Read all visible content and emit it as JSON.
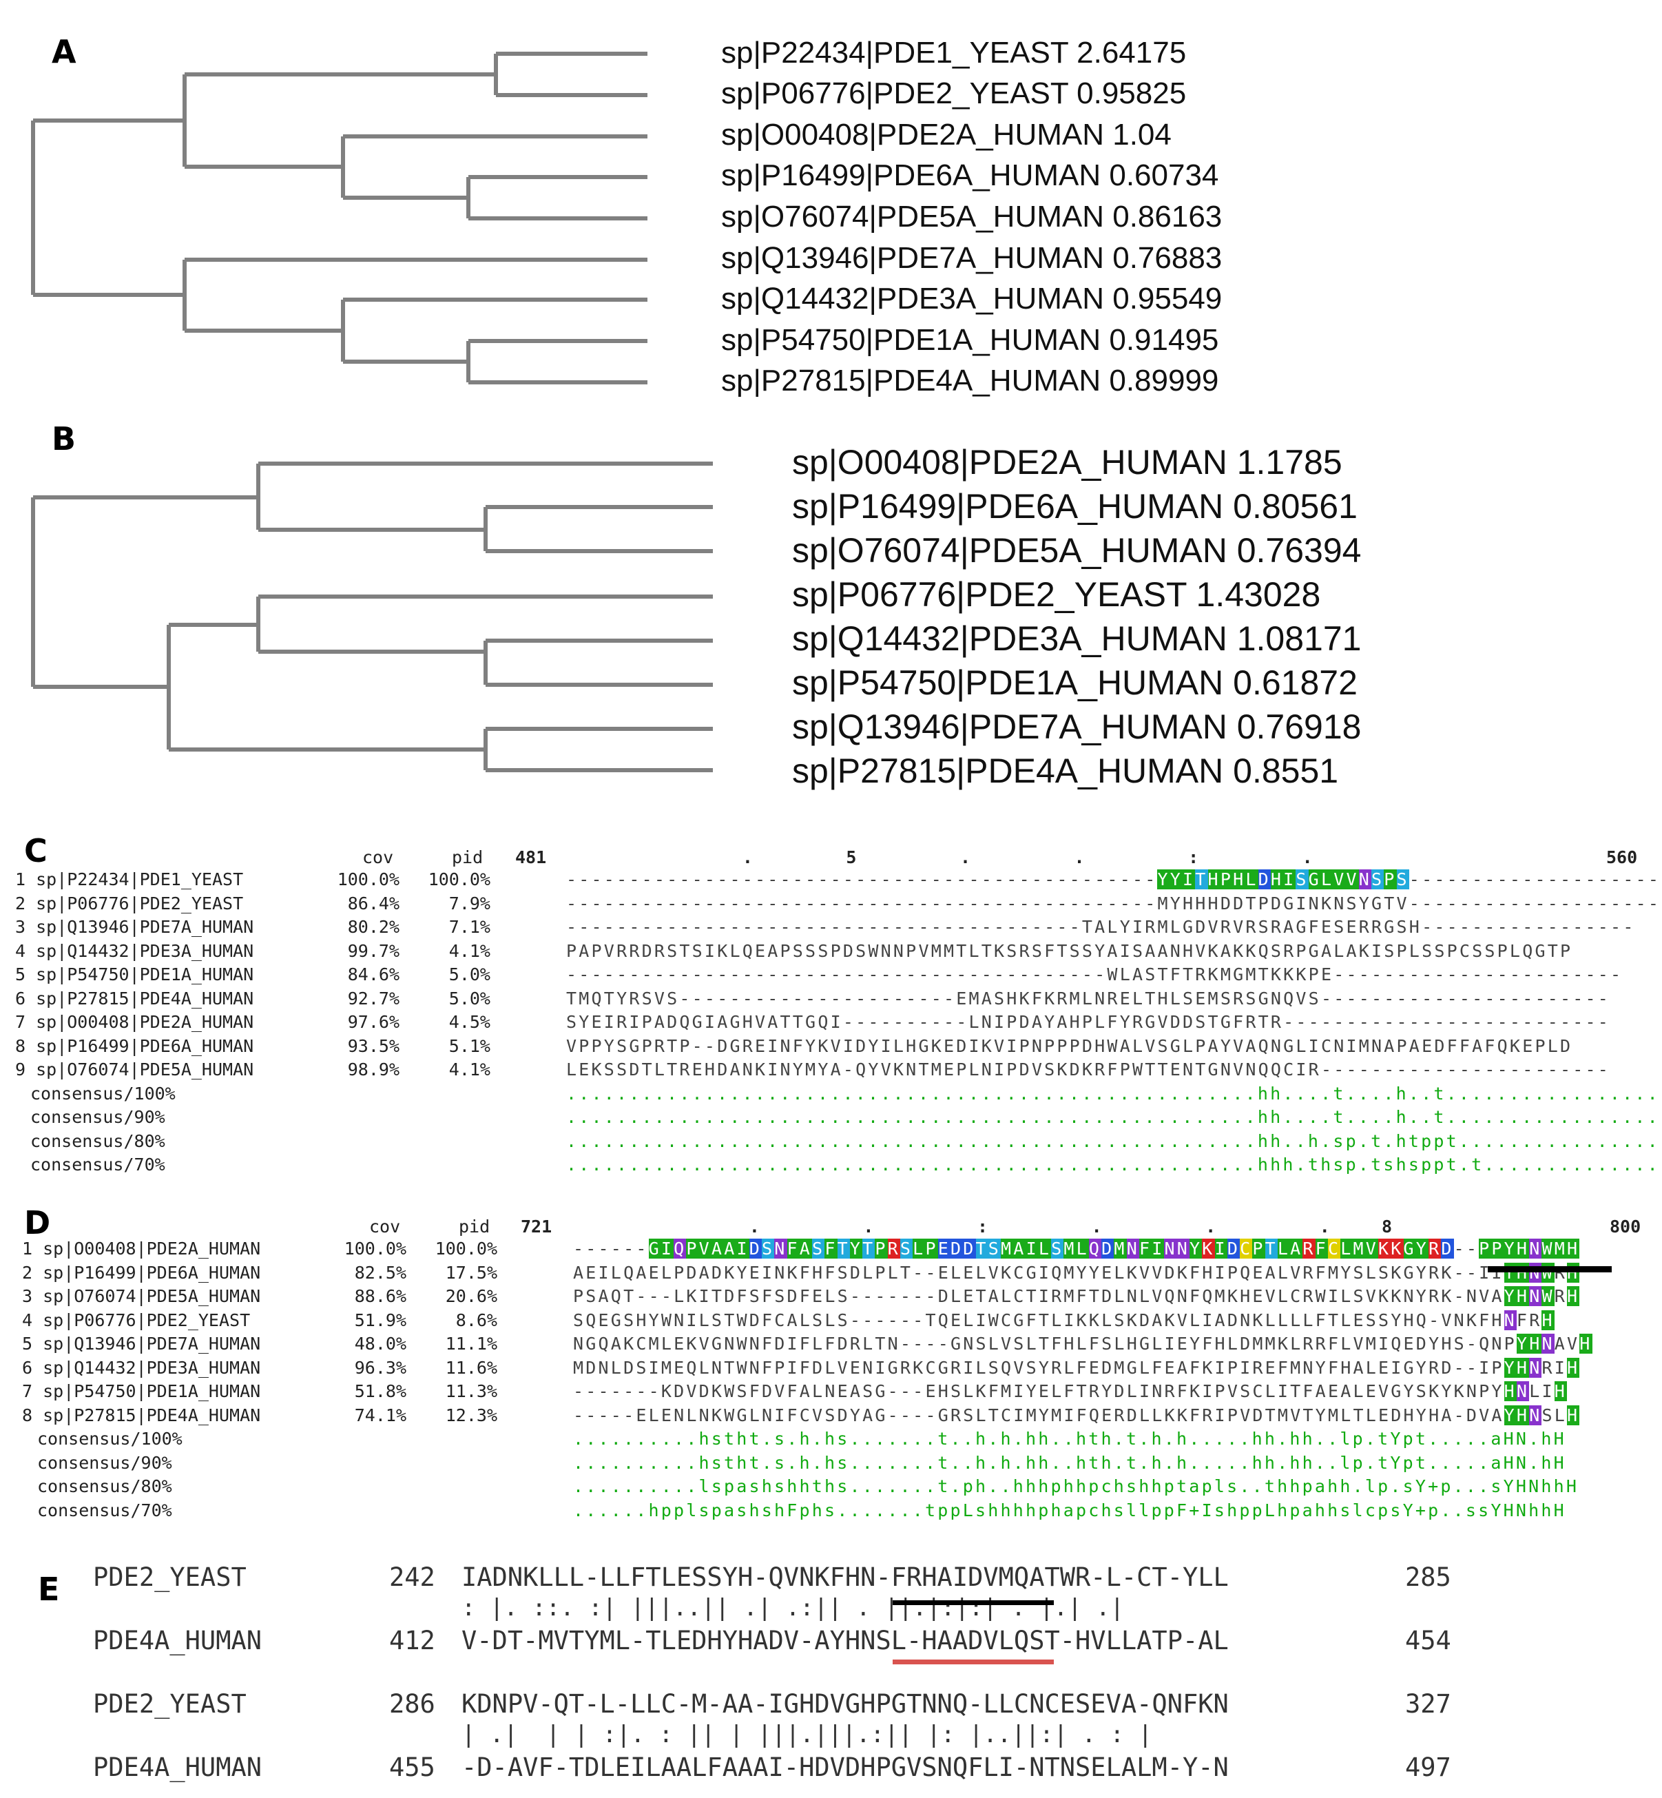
{
  "panels": {
    "A": {
      "label": "A",
      "leaves": [
        "sp|P22434|PDE1_YEAST 2.64175",
        "sp|P06776|PDE2_YEAST 0.95825",
        "sp|O00408|PDE2A_HUMAN 1.04",
        "sp|P16499|PDE6A_HUMAN 0.60734",
        "sp|O76074|PDE5A_HUMAN 0.86163",
        "sp|Q13946|PDE7A_HUMAN 0.76883",
        "sp|Q14432|PDE3A_HUMAN 0.95549",
        "sp|P54750|PDE1A_HUMAN 0.91495",
        "sp|P27815|PDE4A_HUMAN 0.89999"
      ]
    },
    "B": {
      "label": "B",
      "leaves": [
        "sp|O00408|PDE2A_HUMAN 1.1785",
        "sp|P16499|PDE6A_HUMAN 0.80561",
        "sp|O76074|PDE5A_HUMAN 0.76394",
        "sp|P06776|PDE2_YEAST 1.43028",
        "sp|Q14432|PDE3A_HUMAN 1.08171",
        "sp|P54750|PDE1A_HUMAN 0.61872",
        "sp|Q13946|PDE7A_HUMAN 0.76918",
        "sp|P27815|PDE4A_HUMAN 0.8551"
      ]
    },
    "C": {
      "label": "C",
      "header_cov": "cov",
      "header_pid": "pid",
      "start": "481",
      "end": "560",
      "ruler": "                 .         5          .          .          :          .",
      "rows": [
        {
          "name": "1 sp|P22434|PDE1_YEAST",
          "cov": "100.0%",
          "pid": "100.0%",
          "seq": "-----------------------------------------------YYITHPHLDHISGLVVNSPS-----------------------"
        },
        {
          "name": "2 sp|P06776|PDE2_YEAST",
          "cov": "86.4%",
          "pid": "7.9%",
          "seq": "-----------------------------------------------MYHHHDDTPDGINKNSYGTV-----------------------"
        },
        {
          "name": "3 sp|Q13946|PDE7A_HUMAN",
          "cov": "80.2%",
          "pid": "7.1%",
          "seq": "-----------------------------------------TALYIRMLGDVRVRSRAGFESERRGSH-----------------"
        },
        {
          "name": "4 sp|Q14432|PDE3A_HUMAN",
          "cov": "99.7%",
          "pid": "4.1%",
          "seq": "PAPVRRDRSTSIKLQEAPSSSPDSWNNPVMMTLTKSRSFTSSYAISAANHVKAKKQSRPGALAKISPLSSPCSSPLQGTP"
        },
        {
          "name": "5 sp|P54750|PDE1A_HUMAN",
          "cov": "84.6%",
          "pid": "5.0%",
          "seq": "-------------------------------------------WLASTFTRKMGMTKKKPE-----------------------"
        },
        {
          "name": "6 sp|P27815|PDE4A_HUMAN",
          "cov": "92.7%",
          "pid": "5.0%",
          "seq": "TMQTYRSVS----------------------EMASHKFKRMLNRELTHLSEMSRSGNQVS-----------------------"
        },
        {
          "name": "7 sp|O00408|PDE2A_HUMAN",
          "cov": "97.6%",
          "pid": "4.5%",
          "seq": "SYEIRIPADQGIAGHVATTGQI----------LNIPDAYAHPLFYRGVDDSTGFRTR--------------------------"
        },
        {
          "name": "8 sp|P16499|PDE6A_HUMAN",
          "cov": "93.5%",
          "pid": "5.1%",
          "seq": "VPPYSGPRTP--DGREINFYKVIDYILHGKEDIKVIPNPPPDHWALVSGLPAYVAQNGLICNIMNAPAEDFFAFQKEPLD"
        },
        {
          "name": "9 sp|O76074|PDE5A_HUMAN",
          "cov": "98.9%",
          "pid": "4.1%",
          "seq": "LEKSSDTLTREHDANKINYMYA-QYVKNTMEPLNIPDVSKDKRFPWTTENTGNVNQQCIR-----------------------"
        }
      ],
      "consensus": [
        {
          "name": "consensus/100%",
          "seq": ".......................................................hh....t....h..t.................."
        },
        {
          "name": "consensus/90%",
          "seq": ".......................................................hh....t....h..t.................."
        },
        {
          "name": "consensus/80%",
          "seq": ".......................................................hh..h.sp.t.htppt................."
        },
        {
          "name": "consensus/70%",
          "seq": ".......................................................hhh.thsp.tshsppt.t..............."
        }
      ]
    },
    "D": {
      "label": "D",
      "header_cov": "cov",
      "header_pid": "pid",
      "start": "721",
      "end": "800",
      "ruler": "                 .          .          :          .          .          .     8",
      "rows": [
        {
          "name": "1 sp|O00408|PDE2A_HUMAN",
          "cov": "100.0%",
          "pid": "100.0%",
          "seq": "------GIQPVAAIDSNFASFTYTPRSLPEDDTSMAILSMLQDMNFINNYKIDCPTLARFCLMVKKGYRD--PPYHNWMH"
        },
        {
          "name": "2 sp|P16499|PDE6A_HUMAN",
          "cov": "82.5%",
          "pid": "17.5%",
          "seq": "AEILQAELPDADKYEINKFHFSDLPLT--ELELVKCGIQMYYELKVVDKFHIPQEALVRFMYSLSKGYRK--IIYHNWRH"
        },
        {
          "name": "3 sp|O76074|PDE5A_HUMAN",
          "cov": "88.6%",
          "pid": "20.6%",
          "seq": "PSAQT---LKITDFSFSDFELS-------DLETALCTIRMFTDLNLVQNFQMKHEVLCRWILSVKKNYRK-NVAYHNWRH"
        },
        {
          "name": "4 sp|P06776|PDE2_YEAST",
          "cov": "51.9%",
          "pid": "8.6%",
          "seq": "SQEGSHYWNILSTWDFCALSLS------TQELIWCGFTLIKKLSKDAKVLIADNKLLLLFTLESSYHQ-VNKFHNFRH"
        },
        {
          "name": "5 sp|Q13946|PDE7A_HUMAN",
          "cov": "48.0%",
          "pid": "11.1%",
          "seq": "NGQAKCMLEKVGNWNFDIFLFDRLTN----GNSLVSLTFHLFSLHGLIEYFHLDMMKLRRFLVMIQEDYHS-QNPYHNAVH"
        },
        {
          "name": "6 sp|Q14432|PDE3A_HUMAN",
          "cov": "96.3%",
          "pid": "11.6%",
          "seq": "MDNLDSIMEQLNTWNFPIFDLVENIGRKCGRILSQVSYRLFEDMGLFEAFKIPIREFMNYFHALEIGYRD--IPYHNRIH"
        },
        {
          "name": "7 sp|P54750|PDE1A_HUMAN",
          "cov": "51.8%",
          "pid": "11.3%",
          "seq": "-------KDVDKWSFDVFALNEASG---EHSLKFMIYELFTRYDLINRFKIPVSCLITFAEALEVGYSKYKNPYHNLIH"
        },
        {
          "name": "8 sp|P27815|PDE4A_HUMAN",
          "cov": "74.1%",
          "pid": "12.3%",
          "seq": "-----ELENLNKWGLNIFCVSDYAG----GRSLTCIMYMIFQERDLLKKFRIPVDTMVTYMLTLEDHYHA-DVAYHNSLH"
        }
      ],
      "consensus": [
        {
          "name": "consensus/100%",
          "seq": "..........hstht.s.h.hs.......t..h.h.hh..hth.t.h.h.....hh.hh..lp.tYpt.....aHN.hH"
        },
        {
          "name": "consensus/90%",
          "seq": "..........hstht.s.h.hs.......t..h.h.hh..hth.t.h.h.....hh.hh..lp.tYpt.....aHN.hH"
        },
        {
          "name": "consensus/80%",
          "seq": "..........lspashshhths.......t.ph..hhhphhpchshhptapls..thhpahh.lp.sY+p...sYHNhhH"
        },
        {
          "name": "consensus/70%",
          "seq": "......hpplspashshFphs.......tppLshhhhphapchsllppF+IshppLhpahhslcpsY+p..ssYHNhhH"
        }
      ]
    },
    "E": {
      "label": "E",
      "blocks": [
        {
          "top_name": "PDE2_YEAST",
          "top_start": "242",
          "top_seq": "IADNKLLL-LLFTLESSYH-QVNKFHN-FRHAIDVMQATWR-L-CT-YLL",
          "top_end": "285",
          "match": ": |. ::. :| |||..|| .| .:|| . ||.|:|:| . |.| .|",
          "bot_name": "PDE4A_HUMAN",
          "bot_start": "412",
          "bot_seq": "V-DT-MVTYML-TLEDHYHADV-AYHNSL-HAADVLQST-HVLLATP-AL",
          "bot_end": "454"
        },
        {
          "top_name": "PDE2_YEAST",
          "top_start": "286",
          "top_seq": "KDNPV-QT-L-LLC-M-AA-IGHDVGHPGTNNQ-LLCNCESEVA-QNFKN",
          "top_end": "327",
          "match": "| .|  | | :|. : || | |||.|||.:|| |: |..||:| . : |",
          "bot_name": "PDE4A_HUMAN",
          "bot_start": "455",
          "bot_seq": "-D-AVF-TDLEILAALFAAAI-HDVDHPGVSNQFLI-NTNSELALM-Y-N",
          "bot_end": "497"
        }
      ]
    }
  }
}
